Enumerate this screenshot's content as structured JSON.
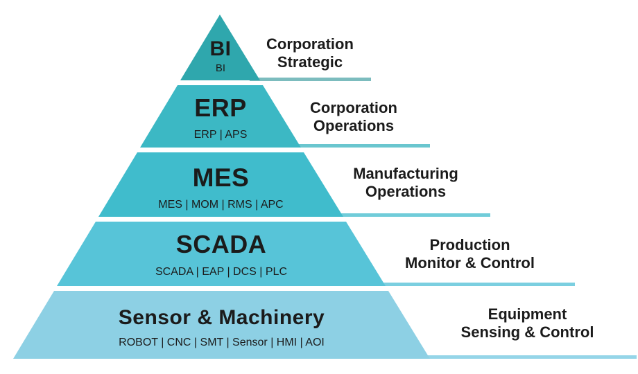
{
  "diagram": {
    "type": "pyramid",
    "background": "#FFFFFF",
    "text_color": "#1B1B1B",
    "levels": [
      {
        "rank": 1,
        "title": "BI",
        "systems": "BI",
        "desc_line1": "Corporation",
        "desc_line2": "Strategic",
        "color": "#2FA7AD",
        "underline_color": "#7CBCBE"
      },
      {
        "rank": 2,
        "title": "ERP",
        "systems": "ERP | APS",
        "desc_line1": "Corporation",
        "desc_line2": "Operations",
        "color": "#3CB8C4",
        "underline_color": "#6AC6CF"
      },
      {
        "rank": 3,
        "title": "MES",
        "systems": "MES | MOM | RMS | APC",
        "desc_line1": "Manufacturing",
        "desc_line2": "Operations",
        "color": "#40BCCC",
        "underline_color": "#70CCD9"
      },
      {
        "rank": 4,
        "title": "SCADA",
        "systems": "SCADA | EAP | DCS | PLC",
        "desc_line1": "Production",
        "desc_line2": "Monitor & Control",
        "color": "#57C4D8",
        "underline_color": "#7BCFE0"
      },
      {
        "rank": 5,
        "title": "Sensor & Machinery",
        "systems": "ROBOT | CNC | SMT | Sensor | HMI | AOI",
        "desc_line1": "Equipment",
        "desc_line2": "Sensing & Control",
        "color": "#8DD0E4",
        "underline_color": "#95D5E8"
      }
    ]
  }
}
